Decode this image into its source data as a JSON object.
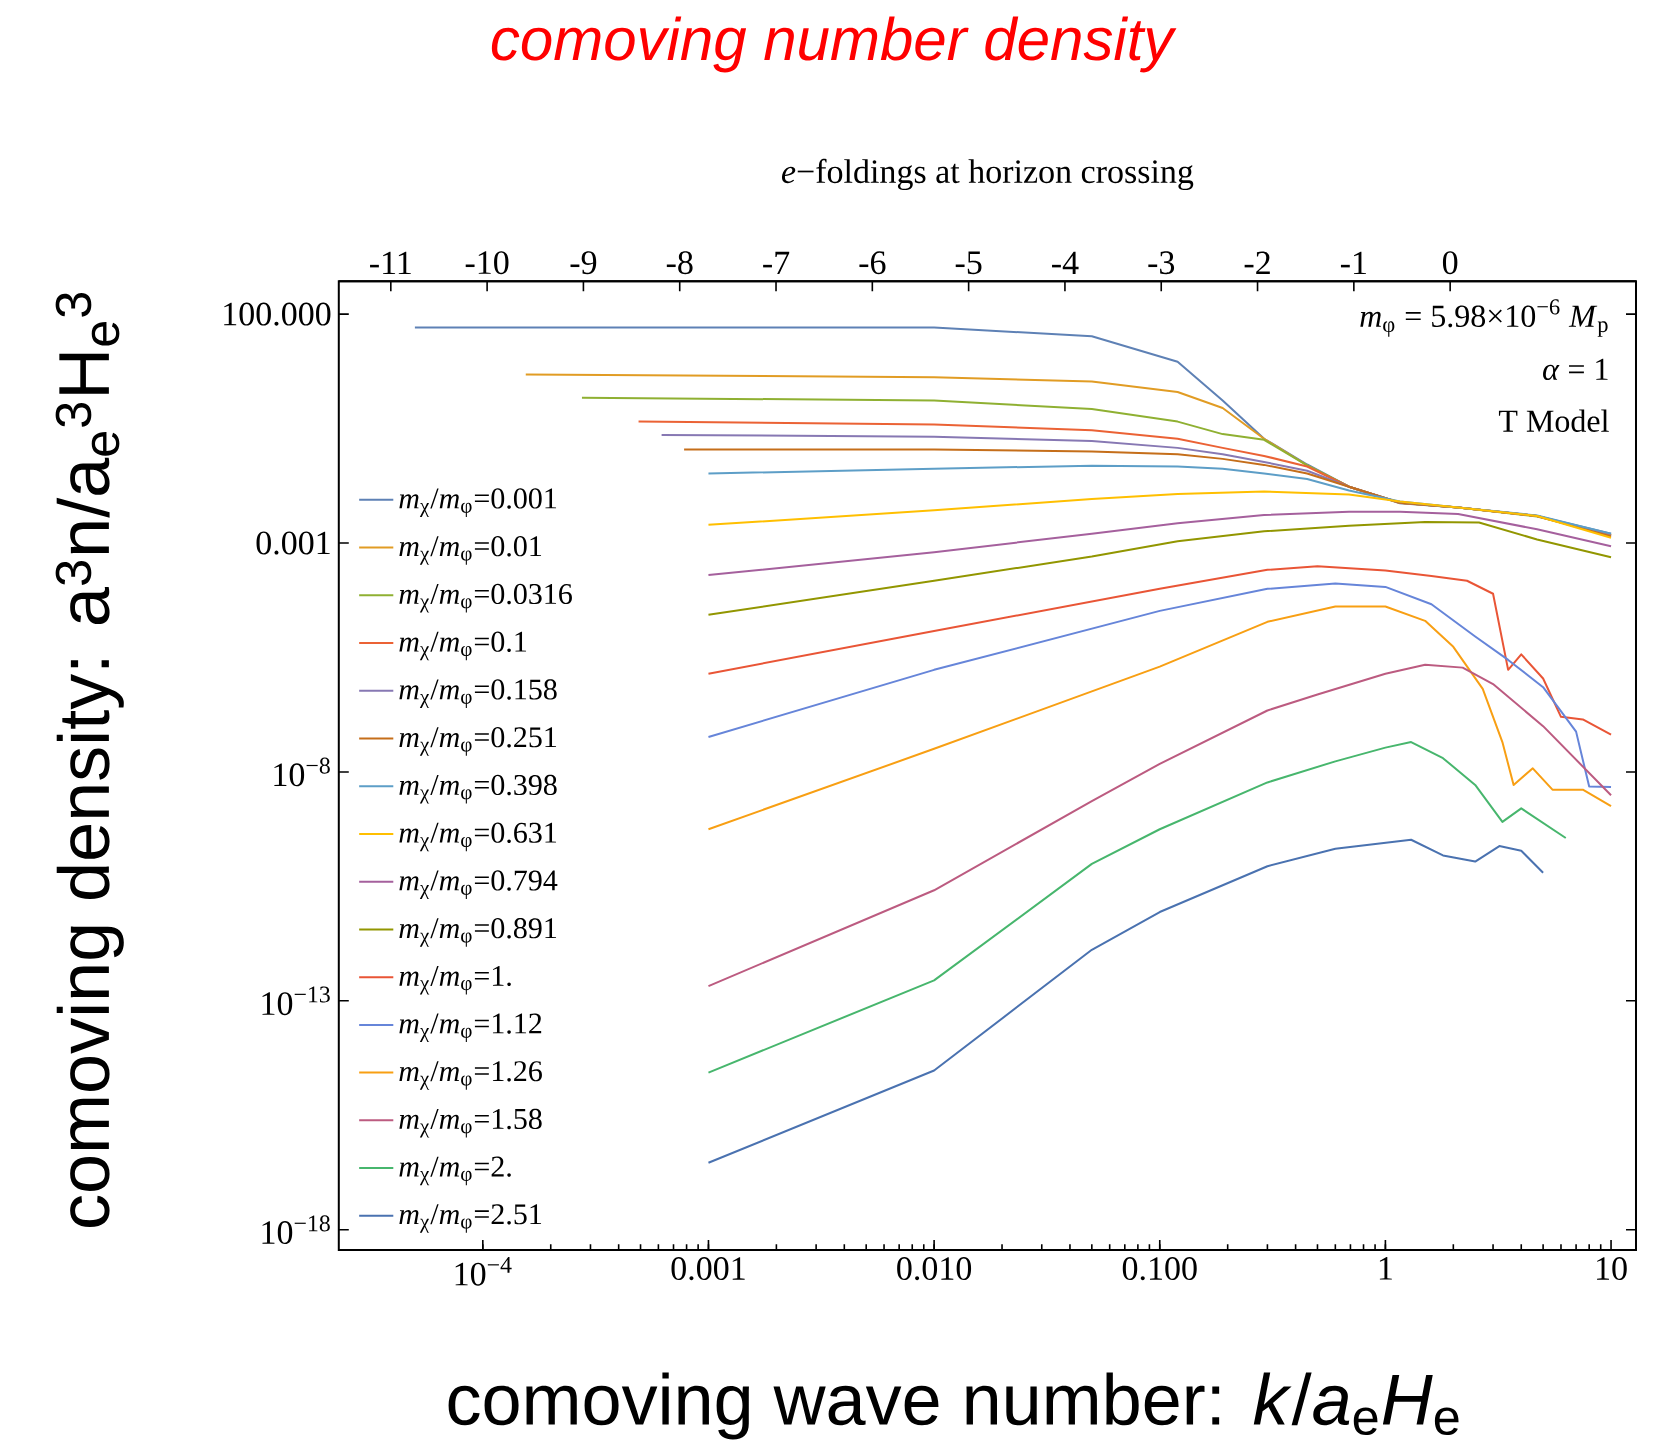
{
  "chart_data": {
    "type": "line",
    "title": "comoving number density",
    "xlabel": "comoving wave number:  *k*/*a*$_{e}$*H*$_{e}$",
    "ylabel": "comoving density:  a$^{3}$n/a$_{e}$$^{3}$H$_{e}$$^{3}$",
    "x2label": "*e*−foldings at horizon crossing",
    "log": "xy",
    "legend": "bottom left",
    "grid": false,
    "marker": "none",
    "line_style": "solid",
    "xlim": [
      2.3e-05,
      12.9
    ],
    "ylim": [
      3.6e-19,
      525
    ],
    "xticks": [
      {
        "value": 0.0001,
        "label": "10$^{−4}$"
      },
      {
        "value": 0.001,
        "label": "0.001"
      },
      {
        "value": 0.01,
        "label": "0.010"
      },
      {
        "value": 0.1,
        "label": "0.100"
      },
      1,
      10
    ],
    "yticks": [
      {
        "value": 1e-18,
        "label": "10$^{−18}$"
      },
      {
        "value": 1e-13,
        "label": "10$^{−13}$"
      },
      {
        "value": 1e-08,
        "label": "10$^{−8}$"
      },
      {
        "value": 0.001,
        "label": "0.001"
      },
      {
        "value": 100,
        "label": "100.000"
      }
    ],
    "x2lim": [
      -11.54,
      1.93
    ],
    "x2ticks": [
      -11,
      -10,
      -9,
      -8,
      -7,
      -6,
      -5,
      -4,
      -3,
      -2,
      -1,
      0
    ],
    "annotations": [
      "*m*$_{φ}$ = 5.98×10$^{−6}$ *M*$_{p}$",
      "*α* = 1",
      "T Model"
    ],
    "series": [
      {
        "name": "*m*$_{χ}$/*m*$_{φ}$=0.001",
        "color": "#5e81b5",
        "x": [
          5e-05,
          0.01,
          0.05,
          0.12,
          0.19,
          0.29,
          0.45,
          0.69,
          1.16,
          2.1,
          4.7,
          10
        ],
        "values": [
          51,
          51,
          33,
          9.1,
          1.3,
          0.19,
          0.052,
          0.017,
          0.0074,
          0.006,
          0.0039,
          0.0016
        ]
      },
      {
        "name": "*m*$_{χ}$/*m*$_{φ}$=0.01",
        "color": "#e19c24",
        "x": [
          0.000155,
          0.01,
          0.05,
          0.12,
          0.19,
          0.29,
          0.45,
          0.69,
          1.16,
          2.1,
          4.7,
          10
        ],
        "values": [
          4.8,
          4.2,
          3.4,
          2.0,
          0.89,
          0.19,
          0.05,
          0.017,
          0.0075,
          0.006,
          0.0039,
          0.0015
        ]
      },
      {
        "name": "*m*$_{χ}$/*m*$_{φ}$=0.0316",
        "color": "#8fb032",
        "x": [
          0.000275,
          0.01,
          0.05,
          0.12,
          0.19,
          0.29,
          0.45,
          0.69,
          1.16,
          2.1,
          4.7,
          10
        ],
        "values": [
          1.5,
          1.3,
          0.85,
          0.45,
          0.24,
          0.18,
          0.05,
          0.017,
          0.0076,
          0.006,
          0.0038,
          0.0015
        ]
      },
      {
        "name": "*m*$_{χ}$/*m*$_{φ}$=0.1",
        "color": "#eb6235",
        "x": [
          0.00049,
          0.01,
          0.05,
          0.12,
          0.19,
          0.29,
          0.45,
          0.69,
          1.16,
          2.1,
          4.7,
          10
        ],
        "values": [
          0.45,
          0.39,
          0.29,
          0.19,
          0.12,
          0.08,
          0.047,
          0.017,
          0.0076,
          0.006,
          0.0039,
          0.0015
        ]
      },
      {
        "name": "*m*$_{χ}$/*m*$_{φ}$=0.158",
        "color": "#8778b3",
        "x": [
          0.00062,
          0.01,
          0.05,
          0.12,
          0.19,
          0.29,
          0.45,
          0.69,
          1.16,
          2.1,
          4.7,
          10
        ],
        "values": [
          0.23,
          0.21,
          0.17,
          0.12,
          0.087,
          0.059,
          0.038,
          0.017,
          0.0076,
          0.006,
          0.0039,
          0.0014
        ]
      },
      {
        "name": "*m*$_{χ}$/*m*$_{φ}$=0.251",
        "color": "#c56e1a",
        "x": [
          0.00078,
          0.01,
          0.05,
          0.12,
          0.19,
          0.29,
          0.45,
          0.69,
          1.16,
          2.1,
          4.7,
          10
        ],
        "values": [
          0.11,
          0.11,
          0.1,
          0.087,
          0.069,
          0.051,
          0.033,
          0.017,
          0.0076,
          0.006,
          0.0039,
          0.0014
        ]
      },
      {
        "name": "*m*$_{χ}$/*m*$_{φ}$=0.398",
        "color": "#5d9ec7",
        "x": [
          0.001,
          0.01,
          0.05,
          0.12,
          0.19,
          0.29,
          0.45,
          0.69,
          1.16,
          2.1,
          4.7,
          10
        ],
        "values": [
          0.033,
          0.042,
          0.049,
          0.047,
          0.042,
          0.033,
          0.025,
          0.014,
          0.0081,
          0.006,
          0.004,
          0.0016
        ]
      },
      {
        "name": "*m*$_{χ}$/*m*$_{φ}$=0.631",
        "color": "#ffbf00",
        "x": [
          0.001,
          0.01,
          0.05,
          0.12,
          0.29,
          0.69,
          1.16,
          2.1,
          4.7,
          10
        ],
        "values": [
          0.0025,
          0.0052,
          0.0092,
          0.0118,
          0.0134,
          0.0115,
          0.0081,
          0.006,
          0.0039,
          0.0013
        ]
      },
      {
        "name": "*m*$_{χ}$/*m*$_{φ}$=0.794",
        "color": "#a5609d",
        "x": [
          0.001,
          0.01,
          0.05,
          0.12,
          0.29,
          0.69,
          1.16,
          2.1,
          4.7,
          10
        ],
        "values": [
          0.0002,
          0.00063,
          0.0016,
          0.0027,
          0.0041,
          0.0048,
          0.0048,
          0.0043,
          0.002,
          0.00085
        ]
      },
      {
        "name": "*m*$_{χ}$/*m*$_{φ}$=0.891",
        "color": "#929600",
        "x": [
          0.001,
          0.01,
          0.05,
          0.12,
          0.29,
          0.69,
          1.5,
          2.6,
          4.7,
          10
        ],
        "values": [
          2.7e-05,
          0.00015,
          0.00051,
          0.0011,
          0.0018,
          0.0024,
          0.0029,
          0.0028,
          0.0012,
          0.00049
        ]
      },
      {
        "name": "*m*$_{χ}$/*m*$_{φ}$=1.",
        "color": "#e95536",
        "x": [
          0.001,
          0.01,
          0.1,
          0.3,
          0.5,
          1,
          1.6,
          2.3,
          3,
          3.5,
          4,
          5,
          6,
          7.5,
          10
        ],
        "values": [
          1.4e-06,
          1.2e-05,
          0.0001,
          0.00026,
          0.00031,
          0.00025,
          0.00019,
          0.00015,
          7.8e-05,
          1.7e-06,
          3.7e-06,
          1.1e-06,
          1.6e-07,
          1.4e-07,
          6.5e-08
        ]
      },
      {
        "name": "*m*$_{χ}$/*m*$_{φ}$=1.12",
        "color": "#6685d9",
        "x": [
          0.001,
          0.01,
          0.1,
          0.3,
          0.6,
          1,
          1.6,
          2.5,
          3.5,
          5,
          7,
          8,
          10
        ],
        "values": [
          5.8e-08,
          1.7e-06,
          3.3e-05,
          0.0001,
          0.00013,
          0.00011,
          4.6e-05,
          9.1e-06,
          2.8e-06,
          7.1e-07,
          7.6e-08,
          4.8e-09,
          4.7e-09
        ]
      },
      {
        "name": "*m*$_{χ}$/*m*$_{φ}$=1.26",
        "color": "#f89f13",
        "x": [
          0.001,
          0.01,
          0.1,
          0.3,
          0.6,
          1,
          1.5,
          2,
          2.7,
          3.3,
          3.7,
          4.5,
          5.5,
          7.5,
          10
        ],
        "values": [
          5.6e-10,
          3.2e-08,
          2e-06,
          1.9e-05,
          4.1e-05,
          4.1e-05,
          2e-05,
          5.4e-06,
          6.5e-07,
          4.5e-08,
          5.2e-09,
          1.2e-08,
          4.1e-09,
          4.1e-09,
          1.8e-09
        ]
      },
      {
        "name": "*m*$_{χ}$/*m*$_{φ}$=1.58",
        "color": "#bc5b80",
        "x": [
          0.001,
          0.01,
          0.05,
          0.1,
          0.3,
          0.5,
          1,
          1.5,
          2.2,
          3,
          5,
          10
        ],
        "values": [
          2.1e-13,
          2.6e-11,
          2.3e-09,
          1.5e-08,
          2.2e-07,
          4.9e-07,
          1.4e-06,
          2.2e-06,
          1.9e-06,
          8.3e-07,
          1e-07,
          3.1e-09
        ]
      },
      {
        "name": "*m*$_{χ}$/*m*$_{φ}$=2.",
        "color": "#47b66d",
        "x": [
          0.001,
          0.01,
          0.05,
          0.1,
          0.3,
          0.6,
          1,
          1.3,
          1.8,
          2.5,
          3.3,
          4,
          6.3
        ],
        "values": [
          2.7e-15,
          2.8e-13,
          9.8e-11,
          5.6e-10,
          5.9e-09,
          1.7e-08,
          3.4e-08,
          4.5e-08,
          2e-08,
          5.2e-09,
          8.1e-10,
          1.6e-09,
          3.6e-10
        ]
      },
      {
        "name": "*m*$_{χ}$/*m*$_{φ}$=2.51",
        "color": "#4a72b0",
        "x": [
          0.001,
          0.01,
          0.05,
          0.1,
          0.3,
          0.6,
          1.3,
          1.8,
          2.5,
          3.2,
          4,
          5
        ],
        "values": [
          2.9e-17,
          3e-15,
          1.3e-12,
          8.7e-12,
          8.7e-11,
          2.1e-10,
          3.3e-10,
          1.5e-10,
          1.1e-10,
          2.4e-10,
          1.9e-10,
          6.3e-11
        ]
      }
    ]
  }
}
